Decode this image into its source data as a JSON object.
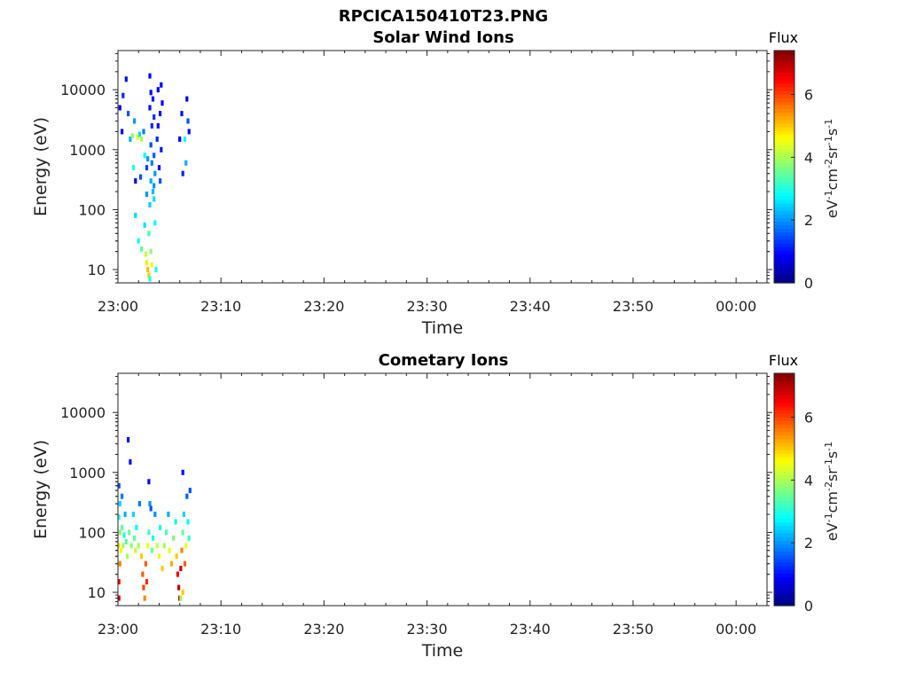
{
  "figure": {
    "title": "RPCICA150410T23.PNG"
  },
  "chart_data": [
    {
      "type": "heatmap",
      "title": "Solar Wind Ions",
      "xlabel": "Time",
      "ylabel": "Energy (eV)",
      "x_tick_labels": [
        "23:00",
        "23:10",
        "23:20",
        "23:30",
        "23:40",
        "23:50",
        "00:00"
      ],
      "x_tick_minutes": [
        0,
        10,
        20,
        30,
        40,
        50,
        60
      ],
      "xlim_minutes": [
        0,
        63
      ],
      "y_scale": "log",
      "ylim": [
        6,
        45000
      ],
      "y_ticks": [
        10,
        100,
        1000,
        10000
      ],
      "y_tick_labels": [
        "10",
        "100",
        "1000",
        "10000"
      ],
      "grid": false,
      "colorbar": {
        "label": "Flux",
        "unit_label": "eV-1cm-2sr-1s-1",
        "range": [
          0,
          7.4
        ],
        "ticks": [
          0,
          2,
          4,
          6
        ],
        "tick_labels": [
          "0",
          "2",
          "4",
          "6"
        ],
        "colormap": "jet"
      },
      "cells": [
        {
          "t": 0.2,
          "e": 5000,
          "v": 1.0
        },
        {
          "t": 0.5,
          "e": 8000,
          "v": 1.2
        },
        {
          "t": 0.8,
          "e": 15000,
          "v": 1.0
        },
        {
          "t": 0.4,
          "e": 2000,
          "v": 0.8
        },
        {
          "t": 1.0,
          "e": 4000,
          "v": 1.5
        },
        {
          "t": 1.2,
          "e": 1500,
          "v": 2.2
        },
        {
          "t": 1.4,
          "e": 1700,
          "v": 3.8
        },
        {
          "t": 1.6,
          "e": 3000,
          "v": 2.0
        },
        {
          "t": 1.9,
          "e": 1600,
          "v": 4.5
        },
        {
          "t": 2.1,
          "e": 1800,
          "v": 2.5
        },
        {
          "t": 2.3,
          "e": 1500,
          "v": 4.0
        },
        {
          "t": 2.5,
          "e": 2000,
          "v": 1.8
        },
        {
          "t": 1.5,
          "e": 500,
          "v": 3.0
        },
        {
          "t": 1.7,
          "e": 300,
          "v": 0.5
        },
        {
          "t": 2.2,
          "e": 350,
          "v": 1.5
        },
        {
          "t": 2.6,
          "e": 800,
          "v": 2.8
        },
        {
          "t": 2.8,
          "e": 500,
          "v": 1.4
        },
        {
          "t": 2.8,
          "e": 180,
          "v": 2.0
        },
        {
          "t": 1.7,
          "e": 80,
          "v": 2.5
        },
        {
          "t": 2.0,
          "e": 30,
          "v": 2.8
        },
        {
          "t": 2.3,
          "e": 22,
          "v": 3.5
        },
        {
          "t": 2.6,
          "e": 55,
          "v": 2.6
        },
        {
          "t": 2.7,
          "e": 18,
          "v": 4.2
        },
        {
          "t": 2.8,
          "e": 13,
          "v": 4.8
        },
        {
          "t": 2.9,
          "e": 10,
          "v": 5.1
        },
        {
          "t": 3.0,
          "e": 8,
          "v": 5.0
        },
        {
          "t": 3.1,
          "e": 7,
          "v": 3.0
        },
        {
          "t": 3.0,
          "e": 40,
          "v": 3.2
        },
        {
          "t": 3.1,
          "e": 120,
          "v": 2.4
        },
        {
          "t": 3.2,
          "e": 20,
          "v": 3.8
        },
        {
          "t": 3.3,
          "e": 12,
          "v": 4.5
        },
        {
          "t": 3.2,
          "e": 300,
          "v": 2.2
        },
        {
          "t": 3.3,
          "e": 600,
          "v": 1.8
        },
        {
          "t": 3.2,
          "e": 1200,
          "v": 1.5
        },
        {
          "t": 3.3,
          "e": 2500,
          "v": 1.2
        },
        {
          "t": 3.1,
          "e": 5000,
          "v": 1.0
        },
        {
          "t": 3.2,
          "e": 9000,
          "v": 1.0
        },
        {
          "t": 3.1,
          "e": 17000,
          "v": 0.9
        },
        {
          "t": 3.4,
          "e": 7000,
          "v": 1.1
        },
        {
          "t": 3.5,
          "e": 3500,
          "v": 1.3
        },
        {
          "t": 3.5,
          "e": 800,
          "v": 1.6
        },
        {
          "t": 3.6,
          "e": 400,
          "v": 2.0
        },
        {
          "t": 3.5,
          "e": 150,
          "v": 2.5
        },
        {
          "t": 3.6,
          "e": 60,
          "v": 2.8
        },
        {
          "t": 3.7,
          "e": 10,
          "v": 3.0
        },
        {
          "t": 3.8,
          "e": 1500,
          "v": 1.2
        },
        {
          "t": 3.9,
          "e": 2500,
          "v": 1.0
        },
        {
          "t": 3.9,
          "e": 10000,
          "v": 0.8
        },
        {
          "t": 4.0,
          "e": 500,
          "v": 1.0
        },
        {
          "t": 4.1,
          "e": 300,
          "v": 1.5
        },
        {
          "t": 4.2,
          "e": 12000,
          "v": 0.9
        },
        {
          "t": 4.2,
          "e": 1000,
          "v": 1.1
        },
        {
          "t": 4.1,
          "e": 4000,
          "v": 1.0
        },
        {
          "t": 4.3,
          "e": 6000,
          "v": 0.9
        },
        {
          "t": 3.4,
          "e": 200,
          "v": 2.3
        },
        {
          "t": 3.5,
          "e": 250,
          "v": 2.0
        },
        {
          "t": 2.9,
          "e": 700,
          "v": 2.0
        },
        {
          "t": 6.2,
          "e": 4000,
          "v": 1.0
        },
        {
          "t": 6.5,
          "e": 1500,
          "v": 2.8
        },
        {
          "t": 6.7,
          "e": 7000,
          "v": 0.8
        },
        {
          "t": 6.8,
          "e": 3000,
          "v": 1.5
        },
        {
          "t": 6.9,
          "e": 2000,
          "v": 1.0
        },
        {
          "t": 6.6,
          "e": 600,
          "v": 2.2
        },
        {
          "t": 6.3,
          "e": 400,
          "v": 1.2
        },
        {
          "t": 6.0,
          "e": 1500,
          "v": 0.9
        }
      ]
    },
    {
      "type": "heatmap",
      "title": "Cometary Ions",
      "xlabel": "Time",
      "ylabel": "Energy (eV)",
      "x_tick_labels": [
        "23:00",
        "23:10",
        "23:20",
        "23:30",
        "23:40",
        "23:50",
        "00:00"
      ],
      "x_tick_minutes": [
        0,
        10,
        20,
        30,
        40,
        50,
        60
      ],
      "xlim_minutes": [
        0,
        63
      ],
      "y_scale": "log",
      "ylim": [
        6,
        45000
      ],
      "y_ticks": [
        10,
        100,
        1000,
        10000
      ],
      "y_tick_labels": [
        "10",
        "100",
        "1000",
        "10000"
      ],
      "grid": false,
      "colorbar": {
        "label": "Flux",
        "unit_label": "eV-1cm-2sr-1s-1",
        "range": [
          0,
          7.4
        ],
        "ticks": [
          0,
          2,
          4,
          6
        ],
        "tick_labels": [
          "0",
          "2",
          "4",
          "6"
        ],
        "colormap": "jet"
      },
      "cells": [
        {
          "t": 0.1,
          "e": 600,
          "v": 1.5
        },
        {
          "t": 0.2,
          "e": 300,
          "v": 2.5
        },
        {
          "t": 0.1,
          "e": 180,
          "v": 3.0
        },
        {
          "t": 0.2,
          "e": 100,
          "v": 3.8
        },
        {
          "t": 0.1,
          "e": 60,
          "v": 4.8
        },
        {
          "t": 0.2,
          "e": 30,
          "v": 5.5
        },
        {
          "t": 0.1,
          "e": 15,
          "v": 6.5
        },
        {
          "t": 0.1,
          "e": 8,
          "v": 6.8
        },
        {
          "t": 0.3,
          "e": 50,
          "v": 4.5
        },
        {
          "t": 0.4,
          "e": 120,
          "v": 3.5
        },
        {
          "t": 0.4,
          "e": 400,
          "v": 1.8
        },
        {
          "t": 0.5,
          "e": 60,
          "v": 4.0
        },
        {
          "t": 0.6,
          "e": 90,
          "v": 3.0
        },
        {
          "t": 0.7,
          "e": 200,
          "v": 2.2
        },
        {
          "t": 0.8,
          "e": 70,
          "v": 3.4
        },
        {
          "t": 0.9,
          "e": 40,
          "v": 4.0
        },
        {
          "t": 1.0,
          "e": 3500,
          "v": 1.0
        },
        {
          "t": 1.2,
          "e": 1500,
          "v": 1.0
        },
        {
          "t": 1.1,
          "e": 100,
          "v": 3.5
        },
        {
          "t": 1.3,
          "e": 60,
          "v": 3.8
        },
        {
          "t": 1.5,
          "e": 200,
          "v": 2.5
        },
        {
          "t": 1.6,
          "e": 80,
          "v": 3.5
        },
        {
          "t": 1.7,
          "e": 50,
          "v": 4.2
        },
        {
          "t": 1.8,
          "e": 120,
          "v": 2.8
        },
        {
          "t": 2.0,
          "e": 60,
          "v": 4.0
        },
        {
          "t": 2.1,
          "e": 300,
          "v": 1.8
        },
        {
          "t": 2.3,
          "e": 40,
          "v": 5.0
        },
        {
          "t": 2.4,
          "e": 20,
          "v": 5.8
        },
        {
          "t": 2.5,
          "e": 12,
          "v": 6.0
        },
        {
          "t": 2.6,
          "e": 8,
          "v": 5.5
        },
        {
          "t": 2.7,
          "e": 30,
          "v": 5.8
        },
        {
          "t": 2.8,
          "e": 15,
          "v": 6.2
        },
        {
          "t": 2.9,
          "e": 60,
          "v": 4.5
        },
        {
          "t": 3.0,
          "e": 100,
          "v": 3.2
        },
        {
          "t": 3.1,
          "e": 300,
          "v": 2.0
        },
        {
          "t": 3.0,
          "e": 700,
          "v": 1.0
        },
        {
          "t": 3.2,
          "e": 250,
          "v": 1.5
        },
        {
          "t": 3.3,
          "e": 50,
          "v": 3.5
        },
        {
          "t": 3.4,
          "e": 80,
          "v": 3.0
        },
        {
          "t": 3.6,
          "e": 200,
          "v": 2.0
        },
        {
          "t": 3.8,
          "e": 60,
          "v": 4.2
        },
        {
          "t": 4.0,
          "e": 40,
          "v": 4.5
        },
        {
          "t": 4.1,
          "e": 120,
          "v": 3.0
        },
        {
          "t": 4.3,
          "e": 25,
          "v": 5.0
        },
        {
          "t": 4.5,
          "e": 60,
          "v": 4.0
        },
        {
          "t": 4.7,
          "e": 100,
          "v": 3.3
        },
        {
          "t": 4.9,
          "e": 200,
          "v": 2.2
        },
        {
          "t": 5.0,
          "e": 50,
          "v": 4.5
        },
        {
          "t": 5.2,
          "e": 30,
          "v": 5.2
        },
        {
          "t": 5.4,
          "e": 80,
          "v": 3.8
        },
        {
          "t": 5.6,
          "e": 150,
          "v": 2.8
        },
        {
          "t": 5.7,
          "e": 40,
          "v": 5.0
        },
        {
          "t": 5.8,
          "e": 20,
          "v": 6.5
        },
        {
          "t": 5.9,
          "e": 12,
          "v": 7.0
        },
        {
          "t": 6.0,
          "e": 8,
          "v": 7.2
        },
        {
          "t": 6.1,
          "e": 25,
          "v": 6.8
        },
        {
          "t": 6.2,
          "e": 50,
          "v": 5.5
        },
        {
          "t": 6.3,
          "e": 1000,
          "v": 1.0
        },
        {
          "t": 6.3,
          "e": 100,
          "v": 3.5
        },
        {
          "t": 6.4,
          "e": 200,
          "v": 2.5
        },
        {
          "t": 6.5,
          "e": 30,
          "v": 5.8
        },
        {
          "t": 6.6,
          "e": 60,
          "v": 4.5
        },
        {
          "t": 6.7,
          "e": 400,
          "v": 1.6
        },
        {
          "t": 6.8,
          "e": 150,
          "v": 2.8
        },
        {
          "t": 6.9,
          "e": 80,
          "v": 3.2
        },
        {
          "t": 7.0,
          "e": 500,
          "v": 1.5
        },
        {
          "t": 6.1,
          "e": 8,
          "v": 4.0
        },
        {
          "t": 6.3,
          "e": 10,
          "v": 5.0
        }
      ]
    }
  ]
}
